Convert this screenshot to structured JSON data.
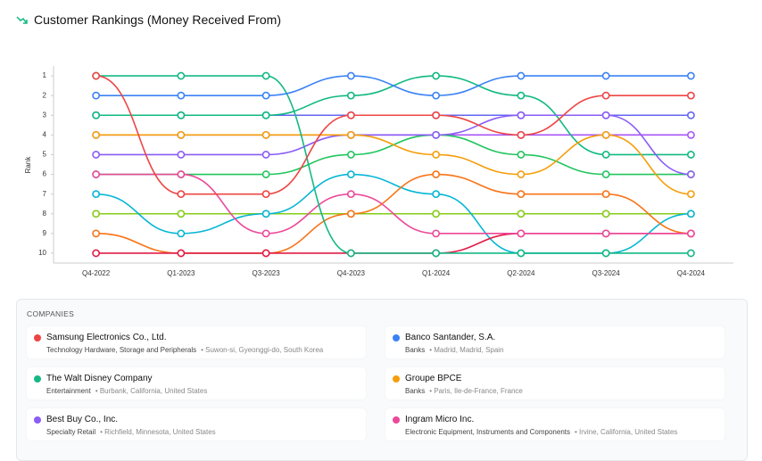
{
  "chart_data": {
    "type": "line",
    "title": "Customer Rankings (Money Received From)",
    "y_label": "Rank",
    "categories": [
      "Q4-2022",
      "Q1-2023",
      "Q3-2023",
      "Q4-2023",
      "Q1-2024",
      "Q2-2024",
      "Q3-2024",
      "Q4-2024"
    ],
    "ylim": [
      10.5,
      0.5
    ],
    "yticks": [
      1,
      2,
      3,
      4,
      5,
      6,
      7,
      8,
      9,
      10
    ],
    "series": [
      {
        "color": "#84cc16",
        "values": [
          8,
          8,
          8,
          8,
          8,
          8,
          8,
          8
        ]
      },
      {
        "color": "#6366f1",
        "values": [
          3,
          3,
          3,
          3,
          3,
          3,
          3,
          3
        ]
      },
      {
        "color": "#a855f7",
        "values": [
          4,
          4,
          4,
          4,
          4,
          4,
          4,
          4
        ]
      },
      {
        "color": "#22c55e",
        "values": [
          6,
          6,
          6,
          5,
          4,
          5,
          6,
          6
        ]
      },
      {
        "color": "#10b981",
        "values": [
          3,
          3,
          3,
          2,
          1,
          2,
          5,
          5
        ]
      },
      {
        "color": "#06b6d4",
        "values": [
          7,
          9,
          8,
          6,
          7,
          10,
          10,
          8
        ]
      },
      {
        "color": "#f97316",
        "values": [
          9,
          10,
          10,
          8,
          6,
          7,
          7,
          9
        ]
      },
      {
        "color": "#e11d48",
        "values": [
          10,
          10,
          10,
          10,
          10,
          9,
          9,
          9
        ]
      },
      {
        "name": "Ingram Micro Inc.",
        "color": "#ec4899",
        "values": [
          6,
          6,
          9,
          7,
          9,
          9,
          9,
          9
        ]
      },
      {
        "name": "Best Buy Co., Inc.",
        "color": "#8b5cf6",
        "values": [
          5,
          5,
          5,
          4,
          4,
          3,
          3,
          6
        ]
      },
      {
        "name": "Groupe BPCE",
        "color": "#f59e0b",
        "values": [
          4,
          4,
          4,
          4,
          5,
          6,
          4,
          7
        ]
      },
      {
        "name": "The Walt Disney Company",
        "color": "#14b885",
        "values": [
          1,
          1,
          1,
          10,
          10,
          10,
          10,
          10
        ]
      },
      {
        "name": "Banco Santander, S.A.",
        "color": "#3b82f6",
        "values": [
          2,
          2,
          2,
          1,
          2,
          1,
          1,
          1
        ]
      },
      {
        "name": "Samsung Electronics Co., Ltd.",
        "color": "#ef4444",
        "values": [
          1,
          7,
          7,
          3,
          3,
          4,
          2,
          2
        ]
      }
    ]
  },
  "companies": {
    "title": "COMPANIES",
    "items": [
      {
        "name": "Samsung Electronics Co., Ltd.",
        "color": "#ef4444",
        "industry": "Technology Hardware, Storage and Peripherals",
        "location": "Suwon-si, Gyeonggi-do, South Korea"
      },
      {
        "name": "Banco Santander, S.A.",
        "color": "#3b82f6",
        "industry": "Banks",
        "location": "Madrid, Madrid, Spain"
      },
      {
        "name": "The Walt Disney Company",
        "color": "#14b885",
        "industry": "Entertainment",
        "location": "Burbank, California, United States"
      },
      {
        "name": "Groupe BPCE",
        "color": "#f59e0b",
        "industry": "Banks",
        "location": "Paris, Ile-de-France, France"
      },
      {
        "name": "Best Buy Co., Inc.",
        "color": "#8b5cf6",
        "industry": "Specialty Retail",
        "location": "Richfield, Minnesota, United States"
      },
      {
        "name": "Ingram Micro Inc.",
        "color": "#ec4899",
        "industry": "Electronic Equipment, Instruments and Components",
        "location": "Irvine, California, United States"
      }
    ]
  }
}
